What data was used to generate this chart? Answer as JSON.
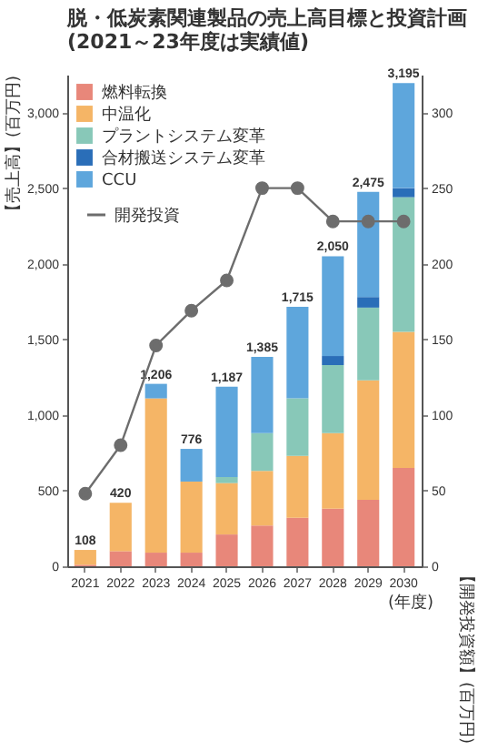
{
  "chart_data": {
    "type": "bar",
    "title": "脱・低炭素関連製品の売上高目標と投資計画",
    "subtitle": "(2021～23年度は実績値)",
    "ylabel": "【売上高】(百万円)",
    "y2label": "【開発投資額】(百万円)",
    "xlabel": "(年度)",
    "categories": [
      "2021",
      "2022",
      "2023",
      "2024",
      "2025",
      "2026",
      "2027",
      "2028",
      "2029",
      "2030"
    ],
    "stacked": true,
    "legend": "top left",
    "grid": false,
    "marker": "circle",
    "ylim": [
      0,
      3250
    ],
    "yticks": [
      0,
      500,
      {
        "value": 1000,
        "label": "1,000"
      },
      {
        "value": 1500,
        "label": "1,500"
      },
      {
        "value": 2000,
        "label": "2,000"
      },
      {
        "value": 2500,
        "label": "2,500"
      },
      {
        "value": 3000,
        "label": "3,000"
      }
    ],
    "y2lim": [
      0,
      325
    ],
    "y2ticks": [
      0,
      50,
      100,
      150,
      200,
      250,
      300
    ],
    "totals": [
      "108",
      "420",
      "1,206",
      "776",
      "1,187",
      "1,385",
      "1,715",
      "2,050",
      "2,475",
      "3,195"
    ],
    "series": [
      {
        "name": "燃料転換",
        "color": "#e8877a",
        "values": [
          10,
          100,
          90,
          90,
          210,
          270,
          320,
          380,
          440,
          650
        ]
      },
      {
        "name": "中温化",
        "color": "#f5b566",
        "values": [
          98,
          320,
          1020,
          470,
          340,
          360,
          410,
          500,
          790,
          900
        ]
      },
      {
        "name": "プラントシステム変革",
        "color": "#88c8b8",
        "values": [
          null,
          null,
          null,
          null,
          40,
          250,
          380,
          450,
          480,
          890
        ]
      },
      {
        "name": "合材搬送システム変革",
        "color": "#2a6eb8",
        "values": [
          null,
          null,
          null,
          null,
          null,
          null,
          null,
          60,
          70,
          60
        ]
      },
      {
        "name": "CCU",
        "color": "#5ea6dc",
        "values": [
          null,
          null,
          96,
          216,
          597,
          505,
          605,
          660,
          695,
          695
        ]
      },
      {
        "name": "開発投資",
        "type": "line",
        "axis": "y2",
        "color": "#6d6d6d",
        "values": [
          48,
          80,
          146,
          169,
          189,
          250,
          250,
          228,
          228,
          228
        ]
      }
    ]
  }
}
